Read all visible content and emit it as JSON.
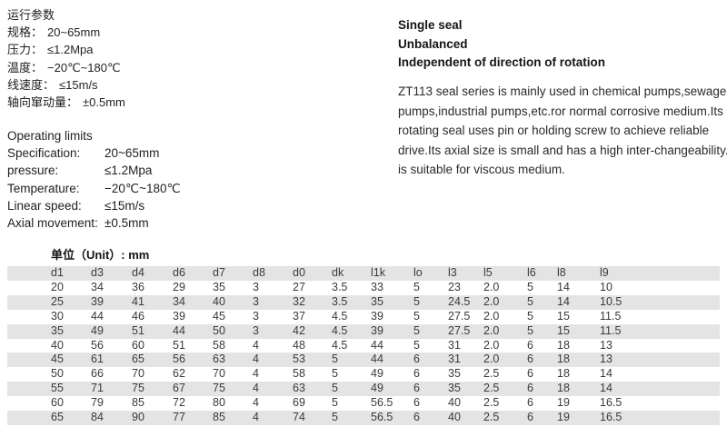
{
  "colors": {
    "stripe": "#e4e4e4",
    "text": "#1f1f1f",
    "background": "#ffffff"
  },
  "left_top_cn": {
    "title": "运行参数",
    "items": [
      {
        "label": "规格：",
        "value": "20~65mm"
      },
      {
        "label": "压力：",
        "value": "≤1.2Mpa"
      },
      {
        "label": "温度：",
        "value": "−20℃~180℃"
      },
      {
        "label": "线速度：",
        "value": "≤15m/s"
      },
      {
        "label": "轴向窜动量：",
        "value": "±0.5mm"
      }
    ]
  },
  "left_bottom_en": {
    "title": "Operating limits",
    "items": [
      {
        "label": "Specification:",
        "value": "20~65mm"
      },
      {
        "label": "pressure:",
        "value": "≤1.2Mpa"
      },
      {
        "label": "Temperature:",
        "value": "−20℃~180℃"
      },
      {
        "label": "Linear speed:",
        "value": "≤15m/s"
      },
      {
        "label": "Axial movement:",
        "value": "±0.5mm"
      }
    ]
  },
  "right_column": {
    "features": [
      "Single seal",
      "Unbalanced",
      "Independent of direction of rotation"
    ],
    "description": "ZT113 seal series is mainly used in chemical pumps,sewage pumps,industrial pumps,etc.ror normal corrosive medium.Its rotating seal uses pin or holding screw to achieve reliable drive.Its axial size is small and has a high inter-changeability.It is suitable for viscous medium."
  },
  "dimension_table": {
    "unit_label": "单位（Unit）: mm",
    "headers": [
      "d1",
      "d3",
      "d4",
      "d6",
      "d7",
      "d8",
      "d0",
      "dk",
      "l1k",
      "lo",
      "l3",
      "l5",
      "l6",
      "l8",
      "l9"
    ],
    "rows": [
      [
        "20",
        "34",
        "36",
        "29",
        "35",
        "3",
        "27",
        "3.5",
        "33",
        "5",
        "23",
        "2.0",
        "5",
        "14",
        "10"
      ],
      [
        "25",
        "39",
        "41",
        "34",
        "40",
        "3",
        "32",
        "3.5",
        "35",
        "5",
        "24.5",
        "2.0",
        "5",
        "14",
        "10.5"
      ],
      [
        "30",
        "44",
        "46",
        "39",
        "45",
        "3",
        "37",
        "4.5",
        "39",
        "5",
        "27.5",
        "2.0",
        "5",
        "15",
        "11.5"
      ],
      [
        "35",
        "49",
        "51",
        "44",
        "50",
        "3",
        "42",
        "4.5",
        "39",
        "5",
        "27.5",
        "2.0",
        "5",
        "15",
        "11.5"
      ],
      [
        "40",
        "56",
        "60",
        "51",
        "58",
        "4",
        "48",
        "4.5",
        "44",
        "5",
        "31",
        "2.0",
        "6",
        "18",
        "13"
      ],
      [
        "45",
        "61",
        "65",
        "56",
        "63",
        "4",
        "53",
        "5",
        "44",
        "6",
        "31",
        "2.0",
        "6",
        "18",
        "13"
      ],
      [
        "50",
        "66",
        "70",
        "62",
        "70",
        "4",
        "58",
        "5",
        "49",
        "6",
        "35",
        "2.5",
        "6",
        "18",
        "14"
      ],
      [
        "55",
        "71",
        "75",
        "67",
        "75",
        "4",
        "63",
        "5",
        "49",
        "6",
        "35",
        "2.5",
        "6",
        "18",
        "14"
      ],
      [
        "60",
        "79",
        "85",
        "72",
        "80",
        "4",
        "69",
        "5",
        "56.5",
        "6",
        "40",
        "2.5",
        "6",
        "19",
        "16.5"
      ],
      [
        "65",
        "84",
        "90",
        "77",
        "85",
        "4",
        "74",
        "5",
        "56.5",
        "6",
        "40",
        "2.5",
        "6",
        "19",
        "16.5"
      ]
    ]
  }
}
